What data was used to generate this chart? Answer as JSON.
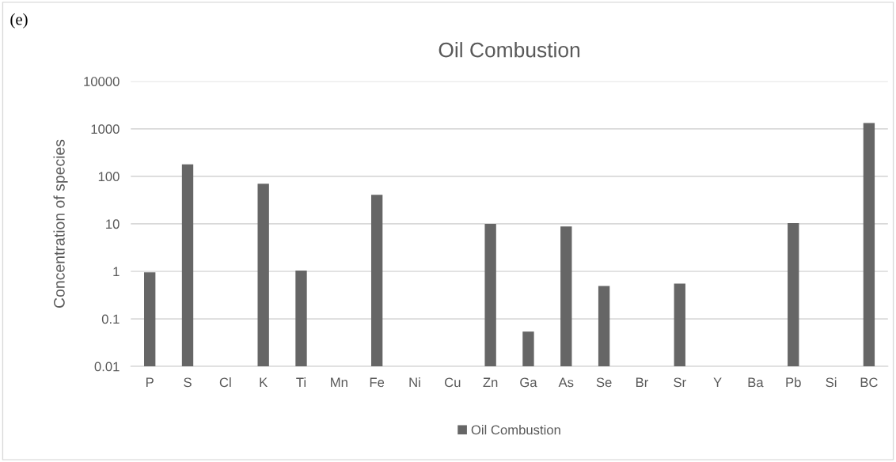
{
  "chart_data": {
    "type": "bar",
    "title": "Oil Combustion",
    "ylabel": "Concentration of species",
    "categories": [
      "P",
      "S",
      "Cl",
      "K",
      "Ti",
      "Mn",
      "Fe",
      "Ni",
      "Cu",
      "Zn",
      "Ga",
      "As",
      "Se",
      "Br",
      "Sr",
      "Y",
      "Ba",
      "Pb",
      "Si",
      "BC"
    ],
    "series": [
      {
        "name": "Oil Combustion",
        "color": "#666666",
        "values": [
          0.95,
          178,
          null,
          70,
          1.04,
          null,
          41,
          null,
          null,
          10,
          0.054,
          8.8,
          0.49,
          null,
          0.55,
          null,
          null,
          10.4,
          null,
          1320
        ]
      }
    ],
    "log": "y",
    "ylim": [
      0.01,
      10000
    ],
    "yticks": [
      {
        "value": 0.01,
        "label": "0.01"
      },
      {
        "value": 0.1,
        "label": "0.1"
      },
      {
        "value": 1,
        "label": "1"
      },
      {
        "value": 10,
        "label": "10"
      },
      {
        "value": 100,
        "label": "100"
      },
      {
        "value": 1000,
        "label": "1000"
      },
      {
        "value": 10000,
        "label": "10000"
      }
    ],
    "grid": "y",
    "legend": "bottom",
    "annotations": [
      "(e)"
    ]
  }
}
